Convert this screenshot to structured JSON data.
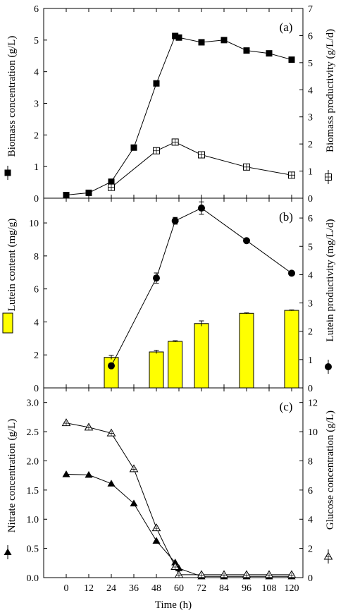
{
  "chart_data": [
    {
      "type": "line",
      "panel_tag": "(a)",
      "x": [
        0,
        12,
        24,
        36,
        48,
        58,
        60,
        72,
        84,
        96,
        108,
        120
      ],
      "xlim": [
        -12,
        126
      ],
      "ylabel": "Biomass concentration (g/L)",
      "ylabel_right": "Biomass productivity (g/L/d)",
      "ylim": [
        0,
        6
      ],
      "ylim_right": [
        0,
        7
      ],
      "yticks": [
        "0",
        "1",
        "2",
        "3",
        "4",
        "5",
        "6"
      ],
      "yticks_right": [
        "0",
        "1",
        "2",
        "3",
        "4",
        "5",
        "6",
        "7"
      ],
      "series": [
        {
          "axis": "left",
          "marker": "filled-square",
          "points": [
            [
              0,
              0.1
            ],
            [
              12,
              0.17
            ],
            [
              24,
              0.52
            ],
            [
              36,
              1.6
            ],
            [
              48,
              3.63
            ],
            [
              58,
              5.13
            ],
            [
              60,
              5.08
            ],
            [
              72,
              4.93
            ],
            [
              84,
              5.0
            ],
            [
              96,
              4.67
            ],
            [
              108,
              4.58
            ],
            [
              120,
              4.38
            ]
          ]
        },
        {
          "axis": "right",
          "marker": "open-square-cross",
          "points": [
            [
              24,
              0.4
            ],
            [
              48,
              1.75
            ],
            [
              58,
              2.07
            ],
            [
              72,
              1.6
            ],
            [
              96,
              1.15
            ],
            [
              120,
              0.85
            ]
          ]
        }
      ]
    },
    {
      "type": "bar+line",
      "panel_tag": "(b)",
      "xlim": [
        -12,
        126
      ],
      "ylabel": "Lutein content (mg/g)",
      "ylabel_right": "Lutein productivity (mg/L/d)",
      "ylim": [
        0,
        11.5
      ],
      "ylim_right": [
        0,
        6.7
      ],
      "yticks": [
        "0",
        "2",
        "4",
        "6",
        "8",
        "10"
      ],
      "yticks_right": [
        "0",
        "1",
        "2",
        "3",
        "4",
        "5",
        "6"
      ],
      "bar_color": "#ffff00",
      "bars": [
        {
          "x": 24,
          "value": 1.85,
          "err": 0.12
        },
        {
          "x": 48,
          "value": 2.18,
          "err": 0.1
        },
        {
          "x": 58,
          "value": 2.82,
          "err": 0.04
        },
        {
          "x": 72,
          "value": 3.9,
          "err": 0.16
        },
        {
          "x": 96,
          "value": 4.52,
          "err": 0.03
        },
        {
          "x": 120,
          "value": 4.7,
          "err": 0.03
        }
      ],
      "series": [
        {
          "axis": "right",
          "marker": "filled-circle",
          "points": [
            [
              24,
              0.78
            ],
            [
              48,
              3.88
            ],
            [
              58,
              5.9
            ],
            [
              72,
              6.35
            ],
            [
              96,
              5.2
            ],
            [
              120,
              4.05
            ]
          ],
          "errors": [
            0,
            0.18,
            0.12,
            0.22,
            0,
            0
          ]
        }
      ]
    },
    {
      "type": "line",
      "panel_tag": "(c)",
      "xlabel": "Time (h)",
      "xlim": [
        -12,
        126
      ],
      "xticks": [
        "0",
        "12",
        "24",
        "36",
        "48",
        "60",
        "72",
        "84",
        "96",
        "108",
        "120"
      ],
      "ylabel": "Nitrate concentration (g/L)",
      "ylabel_right": "Glucose concentration (g/L)",
      "ylim": [
        0,
        3.25
      ],
      "ylim_right": [
        0,
        13
      ],
      "yticks": [
        "0.0",
        "0.5",
        "1.0",
        "1.5",
        "2.0",
        "2.5",
        "3.0"
      ],
      "yticks_right": [
        "0",
        "2",
        "4",
        "6",
        "8",
        "10",
        "12"
      ],
      "series": [
        {
          "axis": "left",
          "marker": "filled-triangle",
          "points": [
            [
              0,
              1.77
            ],
            [
              12,
              1.76
            ],
            [
              24,
              1.61
            ],
            [
              36,
              1.27
            ],
            [
              48,
              0.63
            ],
            [
              58,
              0.26
            ],
            [
              60,
              0.16
            ],
            [
              72,
              0.02
            ],
            [
              84,
              0.02
            ],
            [
              96,
              0.02
            ],
            [
              108,
              0.02
            ],
            [
              120,
              0.02
            ]
          ]
        },
        {
          "axis": "right",
          "marker": "open-triangle-cross",
          "points": [
            [
              0,
              10.6
            ],
            [
              12,
              10.3
            ],
            [
              24,
              9.9
            ],
            [
              36,
              7.45
            ],
            [
              48,
              3.4
            ],
            [
              58,
              0.75
            ],
            [
              60,
              0.2
            ],
            [
              72,
              0.2
            ],
            [
              84,
              0.2
            ],
            [
              96,
              0.2
            ],
            [
              108,
              0.2
            ],
            [
              120,
              0.2
            ]
          ]
        }
      ]
    }
  ]
}
